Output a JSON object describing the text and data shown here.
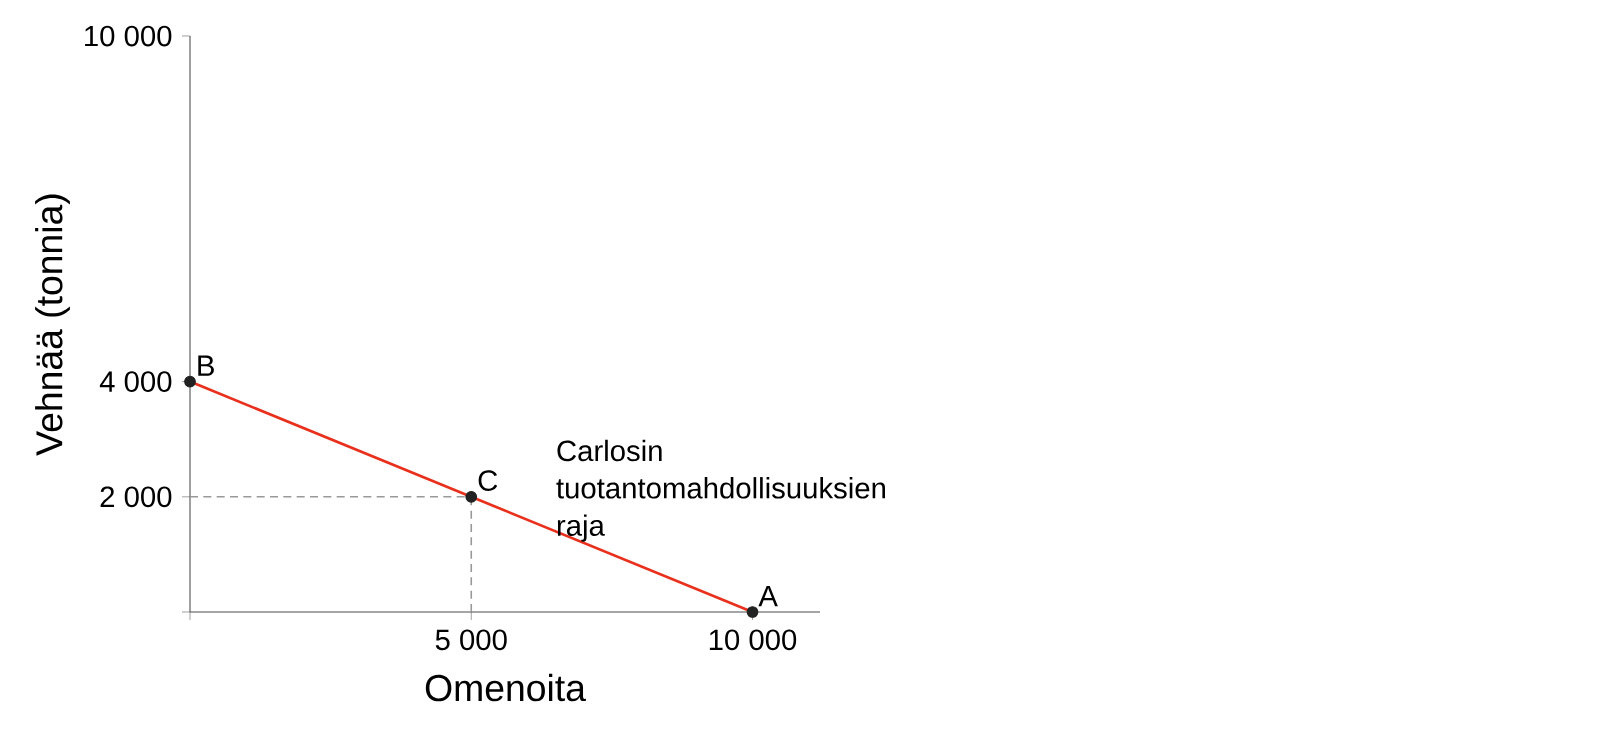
{
  "chart_data": {
    "type": "line",
    "xlabel": "Omenoita",
    "ylabel": "Vehnää (tonnia)",
    "xlim": [
      0,
      11200
    ],
    "ylim": [
      0,
      10000
    ],
    "xticks": [
      {
        "value": 0,
        "label": null
      },
      {
        "value": 5000,
        "label": "5 000"
      },
      {
        "value": 10000,
        "label": "10 000"
      }
    ],
    "yticks": [
      {
        "value": 0,
        "label": null
      },
      {
        "value": 2000,
        "label": "2 000"
      },
      {
        "value": 4000,
        "label": "4 000"
      },
      {
        "value": 10000,
        "label": "10 000"
      }
    ],
    "grid": false,
    "series": [
      {
        "x": [
          0,
          5000
        ],
        "values": [
          2000,
          2000
        ],
        "color": "#999999",
        "line_style": "dashed",
        "marker": "none"
      },
      {
        "x": [
          5000,
          5000
        ],
        "values": [
          0,
          2000
        ],
        "color": "#999999",
        "line_style": "dashed",
        "marker": "none"
      },
      {
        "x": [
          0,
          10000
        ],
        "values": [
          4000,
          0
        ],
        "color": "#e8301c",
        "line_style": "solid",
        "marker": "none"
      },
      {
        "type": "scatter",
        "x": [
          0,
          5000,
          10000
        ],
        "values": [
          4000,
          2000,
          0
        ],
        "color": "#222222",
        "marker": "circle"
      }
    ],
    "annotations": [
      {
        "text": "B",
        "x": 0,
        "y": 4000
      },
      {
        "text": "C",
        "x": 5000,
        "y": 2000
      },
      {
        "text": "A",
        "x": 10000,
        "y": 0
      },
      "Carlosin tuotantomahdollisuuksien raja"
    ]
  }
}
